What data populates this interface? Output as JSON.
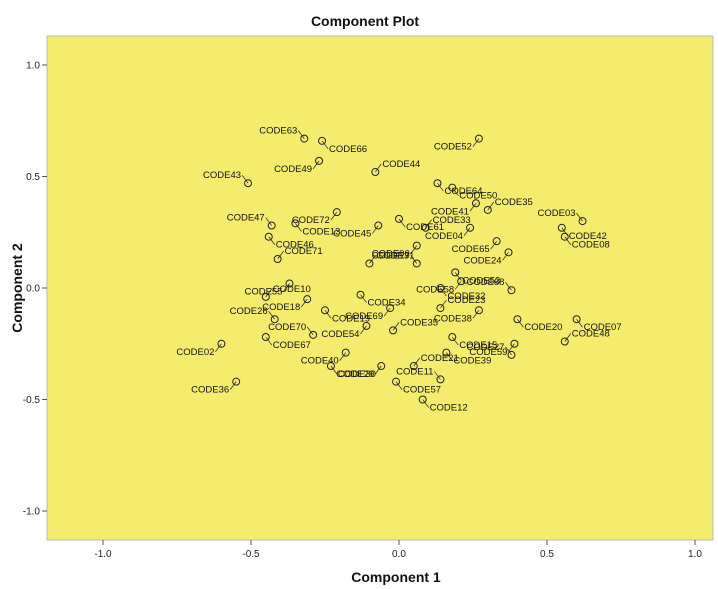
{
  "chart_data": {
    "type": "scatter",
    "title": "Component Plot",
    "xlabel": "Component 1",
    "ylabel": "Component 2",
    "xlim": [
      -1.0,
      1.0
    ],
    "ylim": [
      -1.0,
      1.0
    ],
    "x_ticks": [
      "-1.0",
      "-0.5",
      "0.0",
      "0.5",
      "1.0"
    ],
    "y_ticks": [
      "1.0",
      "0.5",
      "0.0",
      "-0.5",
      "-1.0"
    ],
    "grid": false,
    "background_color": "#f5ec6e",
    "points": [
      {
        "label": "CODE63",
        "x": -0.32,
        "y": 0.67
      },
      {
        "label": "CODE66",
        "x": -0.26,
        "y": 0.66
      },
      {
        "label": "CODE52",
        "x": 0.27,
        "y": 0.67
      },
      {
        "label": "CODE44",
        "x": -0.08,
        "y": 0.52
      },
      {
        "label": "CODE49",
        "x": -0.27,
        "y": 0.57
      },
      {
        "label": "CODE64",
        "x": 0.13,
        "y": 0.47
      },
      {
        "label": "CODE43",
        "x": -0.51,
        "y": 0.47
      },
      {
        "label": "CODE50",
        "x": 0.18,
        "y": 0.45
      },
      {
        "label": "CODE41",
        "x": 0.26,
        "y": 0.38
      },
      {
        "label": "CODE35",
        "x": 0.3,
        "y": 0.35
      },
      {
        "label": "CODE72",
        "x": -0.21,
        "y": 0.34
      },
      {
        "label": "CODE61",
        "x": 0.0,
        "y": 0.31
      },
      {
        "label": "CODE47",
        "x": -0.43,
        "y": 0.28
      },
      {
        "label": "CODE13",
        "x": -0.35,
        "y": 0.29
      },
      {
        "label": "CODE45",
        "x": -0.07,
        "y": 0.28
      },
      {
        "label": "CODE33",
        "x": 0.09,
        "y": 0.27
      },
      {
        "label": "CODE04",
        "x": 0.24,
        "y": 0.27
      },
      {
        "label": "CODE42",
        "x": 0.55,
        "y": 0.27
      },
      {
        "label": "CODE03",
        "x": 0.62,
        "y": 0.3
      },
      {
        "label": "CODE46",
        "x": -0.44,
        "y": 0.23
      },
      {
        "label": "CODE65",
        "x": 0.33,
        "y": 0.21
      },
      {
        "label": "CODE71",
        "x": -0.41,
        "y": 0.13
      },
      {
        "label": "CODE24",
        "x": 0.37,
        "y": 0.16
      },
      {
        "label": "CODE08",
        "x": 0.56,
        "y": 0.23
      },
      {
        "label": "CODE17",
        "x": 0.06,
        "y": 0.11
      },
      {
        "label": "CODE53",
        "x": 0.19,
        "y": 0.07
      },
      {
        "label": "CODE55",
        "x": -0.37,
        "y": 0.02
      },
      {
        "label": "CODE10",
        "x": -0.45,
        "y": -0.04
      },
      {
        "label": "CODE18",
        "x": -0.31,
        "y": -0.05
      },
      {
        "label": "CODE34",
        "x": -0.13,
        "y": -0.03
      },
      {
        "label": "CODE68",
        "x": 0.38,
        "y": -0.01
      },
      {
        "label": "CODE19",
        "x": -0.25,
        "y": -0.1
      },
      {
        "label": "CODE69",
        "x": -0.03,
        "y": -0.09
      },
      {
        "label": "CODE23",
        "x": 0.14,
        "y": -0.09
      },
      {
        "label": "CODE38",
        "x": 0.27,
        "y": -0.1
      },
      {
        "label": "CODE07",
        "x": 0.6,
        "y": -0.14
      },
      {
        "label": "CODE26",
        "x": -0.42,
        "y": -0.14
      },
      {
        "label": "CODE20",
        "x": 0.4,
        "y": -0.14
      },
      {
        "label": "CODE54",
        "x": -0.11,
        "y": -0.17
      },
      {
        "label": "CODE35",
        "x": -0.02,
        "y": -0.19
      },
      {
        "label": "CODE02",
        "x": -0.6,
        "y": -0.25
      },
      {
        "label": "CODE67",
        "x": -0.45,
        "y": -0.22
      },
      {
        "label": "CODE70",
        "x": -0.29,
        "y": -0.21
      },
      {
        "label": "CODE15",
        "x": 0.18,
        "y": -0.22
      },
      {
        "label": "CODE59",
        "x": 0.39,
        "y": -0.25
      },
      {
        "label": "CODE48",
        "x": 0.56,
        "y": -0.24
      },
      {
        "label": "CODE40",
        "x": -0.18,
        "y": -0.29
      },
      {
        "label": "CODE39",
        "x": 0.16,
        "y": -0.29
      },
      {
        "label": "CODE27",
        "x": 0.38,
        "y": -0.3
      },
      {
        "label": "CODE30",
        "x": -0.23,
        "y": -0.35
      },
      {
        "label": "CODE29",
        "x": -0.06,
        "y": -0.35
      },
      {
        "label": "CODE21",
        "x": 0.05,
        "y": -0.35
      },
      {
        "label": "CODE36",
        "x": -0.55,
        "y": -0.42
      },
      {
        "label": "CODE57",
        "x": -0.01,
        "y": -0.42
      },
      {
        "label": "CODE11",
        "x": 0.14,
        "y": -0.41
      },
      {
        "label": "CODE12",
        "x": 0.08,
        "y": -0.5
      },
      {
        "label": "CODE06",
        "x": 0.06,
        "y": 0.19
      },
      {
        "label": "CODE31",
        "x": -0.1,
        "y": 0.11
      },
      {
        "label": "CODE58",
        "x": 0.21,
        "y": 0.03
      },
      {
        "label": "CODE32",
        "x": 0.14,
        "y": 0.0
      }
    ]
  }
}
